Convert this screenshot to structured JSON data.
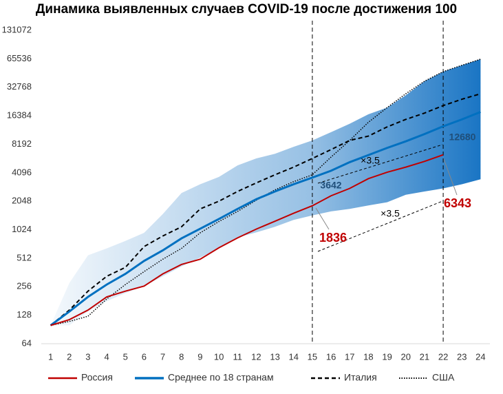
{
  "chart_data": {
    "type": "line",
    "title": "Динамика выявленных случаев COVID-19 после достижения 100",
    "x": [
      1,
      2,
      3,
      4,
      5,
      6,
      7,
      8,
      9,
      10,
      11,
      12,
      13,
      14,
      15,
      16,
      17,
      18,
      19,
      20,
      21,
      22,
      23,
      24
    ],
    "xlim": [
      0.5,
      24.5
    ],
    "xticks": [
      1,
      2,
      3,
      4,
      5,
      6,
      7,
      8,
      9,
      10,
      11,
      12,
      13,
      14,
      15,
      16,
      17,
      18,
      19,
      20,
      21,
      22,
      23,
      24
    ],
    "ylim": [
      64,
      131072
    ],
    "yticks": [
      64,
      128,
      256,
      512,
      1024,
      2048,
      4096,
      8192,
      16384,
      32768,
      65536,
      131072
    ],
    "log_scale": "y",
    "log_base": 2,
    "grid": false,
    "band": {
      "color": "#1a75c4",
      "upper": [
        100,
        280,
        550,
        650,
        780,
        950,
        1500,
        2500,
        3100,
        3700,
        4900,
        5800,
        6500,
        7700,
        9000,
        11000,
        13500,
        17000,
        20000,
        27000,
        38000,
        48000,
        56000,
        65000
      ],
      "lower": [
        100,
        100,
        140,
        180,
        220,
        260,
        330,
        420,
        520,
        650,
        850,
        960,
        1100,
        1300,
        1450,
        1600,
        1700,
        1850,
        2000,
        2400,
        2600,
        2800,
        3100,
        3500
      ]
    },
    "series": [
      {
        "name": "Россия",
        "color": "#c00000",
        "style": "solid",
        "width": 2,
        "values": [
          100,
          115,
          145,
          200,
          230,
          260,
          350,
          440,
          500,
          660,
          840,
          1040,
          1260,
          1530,
          1836,
          2340,
          2800,
          3550,
          4150,
          4700,
          5400,
          6343,
          null,
          null
        ]
      },
      {
        "name": "Среднее по 18 странам",
        "color": "#0070c0",
        "style": "solid",
        "width": 3,
        "values": [
          100,
          140,
          200,
          270,
          350,
          480,
          620,
          830,
          1050,
          1330,
          1700,
          2150,
          2600,
          3100,
          3642,
          4300,
          5300,
          6300,
          7500,
          8800,
          10500,
          12680,
          15000,
          18000
        ]
      },
      {
        "name": "Италия",
        "color": "#000000",
        "style": "dashed",
        "width": 2,
        "values": [
          100,
          145,
          230,
          330,
          410,
          680,
          880,
          1100,
          1700,
          2050,
          2600,
          3200,
          3900,
          4700,
          5800,
          7200,
          9000,
          10000,
          12500,
          15000,
          17500,
          21000,
          24500,
          28000
        ]
      },
      {
        "name": "США",
        "color": "#000000",
        "style": "dotted",
        "width": 1.5,
        "values": [
          100,
          110,
          125,
          190,
          270,
          370,
          500,
          650,
          950,
          1250,
          1600,
          2100,
          2700,
          3300,
          3900,
          6000,
          9000,
          14000,
          20000,
          28000,
          38000,
          48000,
          56000,
          65000
        ]
      }
    ],
    "vlines": [
      15,
      22
    ],
    "annotations": [
      {
        "text": "1836",
        "color": "#c00000"
      },
      {
        "text": "3642",
        "color": "#1f4e79"
      },
      {
        "text": "6343",
        "color": "#c00000"
      },
      {
        "text": "12680",
        "color": "#1f4e79"
      },
      {
        "text": "×3.5",
        "color": "#000000"
      },
      {
        "text": "×3.5",
        "color": "#000000"
      }
    ]
  }
}
